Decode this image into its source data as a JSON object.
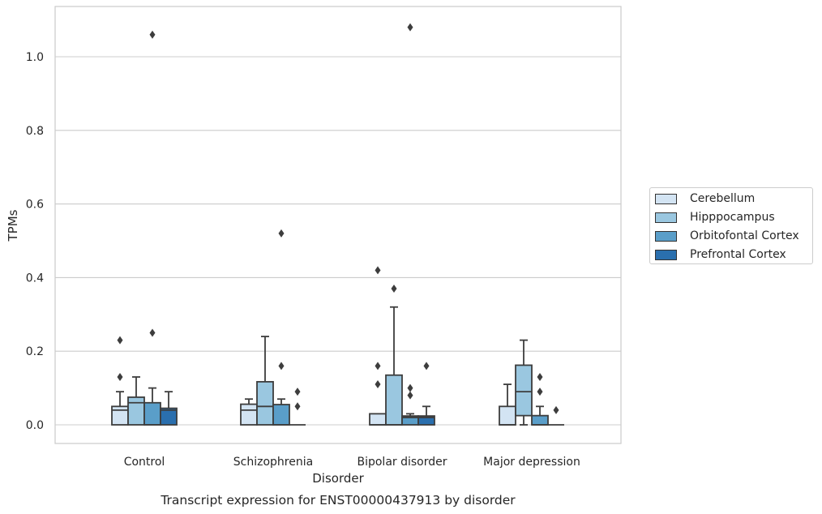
{
  "chart_data": {
    "type": "box",
    "title": "Transcript expression for ENST00000437913 by disorder",
    "xlabel": "Disorder",
    "ylabel": "TPMs",
    "ylim": [
      -0.05,
      1.14
    ],
    "yticks": [
      "0.0",
      "0.2",
      "0.4",
      "0.6",
      "0.8",
      "1.0"
    ],
    "ytick_values": [
      0.0,
      0.2,
      0.4,
      0.6,
      0.8,
      1.0
    ],
    "grid": "horizontal",
    "legend_position": "right-outside",
    "categories": [
      "Control",
      "Schizophrenia",
      "Bipolar disorder",
      "Major depression"
    ],
    "series": [
      {
        "name": "Cerebellum",
        "color": "#d3e4f3",
        "boxes": [
          {
            "min": 0.0,
            "q1": 0.0,
            "median": 0.04,
            "q3": 0.05,
            "max": 0.09,
            "outliers": [
              0.13,
              0.23
            ]
          },
          {
            "min": 0.0,
            "q1": 0.0,
            "median": 0.04,
            "q3": 0.056,
            "max": 0.07,
            "outliers": []
          },
          {
            "min": 0.0,
            "q1": 0.0,
            "median": 0.0,
            "q3": 0.03,
            "max": 0.03,
            "outliers": [
              0.11,
              0.16,
              0.42
            ]
          },
          {
            "min": 0.0,
            "q1": 0.0,
            "median": 0.0,
            "q3": 0.05,
            "max": 0.11,
            "outliers": []
          }
        ]
      },
      {
        "name": "Hipppocampus",
        "color": "#9ac7e0",
        "boxes": [
          {
            "min": 0.0,
            "q1": 0.0,
            "median": 0.06,
            "q3": 0.075,
            "max": 0.13,
            "outliers": []
          },
          {
            "min": 0.0,
            "q1": 0.0,
            "median": 0.05,
            "q3": 0.117,
            "max": 0.24,
            "outliers": []
          },
          {
            "min": 0.0,
            "q1": 0.0,
            "median": 0.0,
            "q3": 0.135,
            "max": 0.32,
            "outliers": [
              0.37
            ]
          },
          {
            "min": 0.0,
            "q1": 0.025,
            "median": 0.09,
            "q3": 0.162,
            "max": 0.23,
            "outliers": []
          }
        ]
      },
      {
        "name": "Orbitofontal Cortex",
        "color": "#5a9ec9",
        "boxes": [
          {
            "min": 0.0,
            "q1": 0.0,
            "median": 0.0,
            "q3": 0.06,
            "max": 0.1,
            "outliers": [
              0.25,
              1.06
            ]
          },
          {
            "min": 0.0,
            "q1": 0.0,
            "median": 0.0,
            "q3": 0.055,
            "max": 0.07,
            "outliers": [
              0.16,
              0.52
            ]
          },
          {
            "min": 0.0,
            "q1": 0.0,
            "median": 0.02,
            "q3": 0.024,
            "max": 0.03,
            "outliers": [
              0.08,
              0.1,
              1.08
            ]
          },
          {
            "min": 0.0,
            "q1": 0.0,
            "median": 0.0,
            "q3": 0.025,
            "max": 0.05,
            "outliers": [
              0.09,
              0.13
            ]
          }
        ]
      },
      {
        "name": "Prefrontal Cortex",
        "color": "#2a6fae",
        "boxes": [
          {
            "min": 0.0,
            "q1": 0.0,
            "median": 0.04,
            "q3": 0.045,
            "max": 0.09,
            "outliers": []
          },
          {
            "min": 0.0,
            "q1": 0.0,
            "median": 0.0,
            "q3": 0.0,
            "max": 0.0,
            "outliers": [
              0.05,
              0.09
            ]
          },
          {
            "min": 0.0,
            "q1": 0.0,
            "median": 0.02,
            "q3": 0.024,
            "max": 0.05,
            "outliers": [
              0.16
            ]
          },
          {
            "min": 0.0,
            "q1": 0.0,
            "median": 0.0,
            "q3": 0.0,
            "max": 0.0,
            "outliers": [
              0.04
            ]
          }
        ]
      }
    ]
  }
}
